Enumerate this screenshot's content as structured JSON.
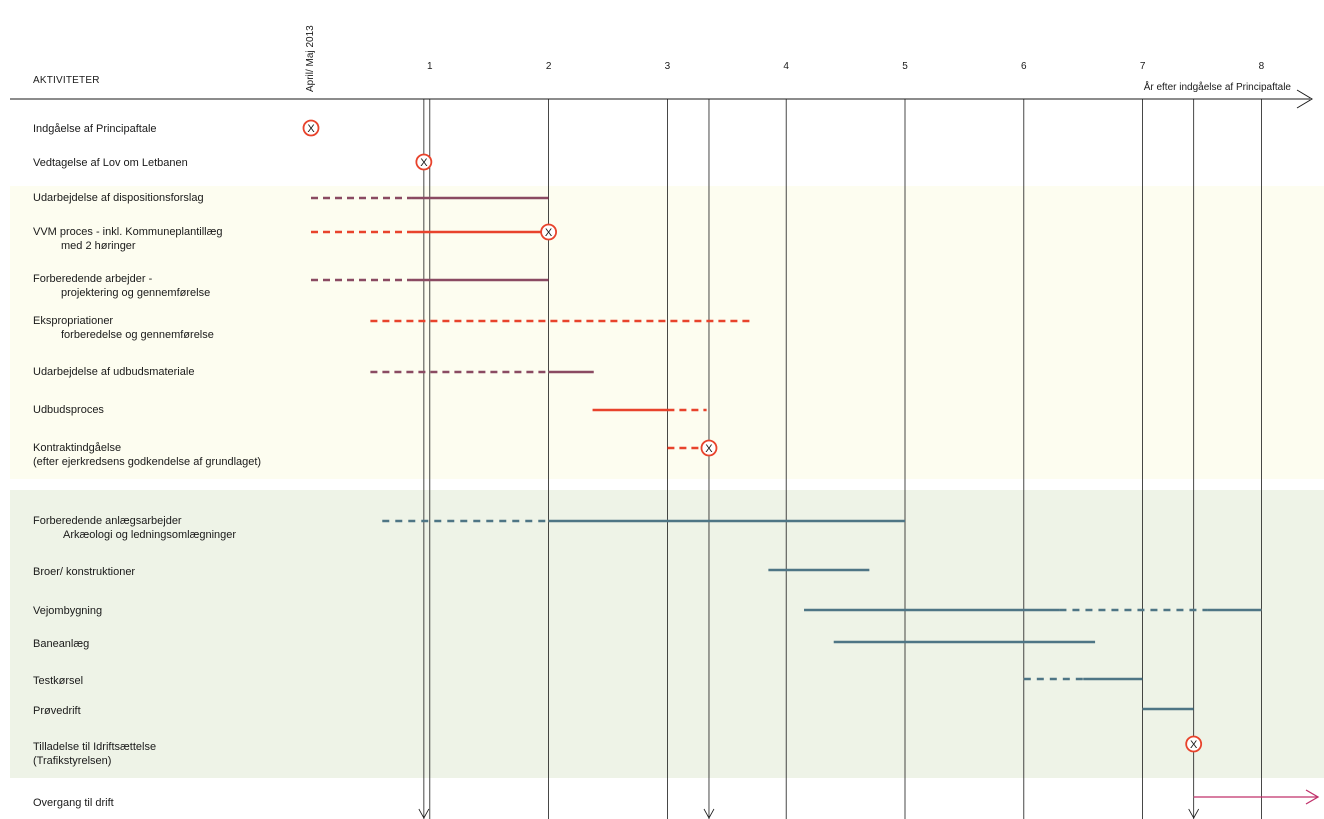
{
  "header": {
    "activities_label": "AKTIVITETER",
    "start_label": "April/ Maj 2013",
    "axis_label": "År efter indgåelse af Principaftale"
  },
  "axis": {
    "ticks": [
      "1",
      "2",
      "3",
      "4",
      "5",
      "6",
      "7",
      "8"
    ],
    "range_years": [
      0,
      8.2
    ]
  },
  "colors": {
    "purple": "#8a4a62",
    "red": "#e8432c",
    "teal": "#4e7585",
    "band_prep": "#fdfdf0",
    "band_build": "#eef3e7",
    "milestone": "#e8432c",
    "operation_arrow": "#c0306a"
  },
  "activities": [
    {
      "lines": [
        "Indgåelse af Principaftale"
      ]
    },
    {
      "lines": [
        "Vedtagelse af Lov om Letbanen"
      ]
    },
    {
      "lines": [
        "Udarbejdelse af dispositionsforslag"
      ]
    },
    {
      "lines": [
        "VVM proces - inkl. Kommuneplantillæg",
        "med 2 høringer"
      ]
    },
    {
      "lines": [
        "Forberedende arbejder -",
        "projektering og gennemførelse"
      ]
    },
    {
      "lines": [
        "Ekspropriationer",
        "forberedelse og gennemførelse"
      ]
    },
    {
      "lines": [
        "Udarbejdelse af udbudsmateriale"
      ]
    },
    {
      "lines": [
        "Udbudsproces"
      ]
    },
    {
      "lines": [
        "Kontraktindgåelse",
        "(efter ejerkredsens godkendelse af grundlaget)"
      ]
    },
    {
      "lines": [
        "Forberedende anlægsarbejder",
        "Arkæologi og ledningsomlægninger"
      ]
    },
    {
      "lines": [
        "Broer/ konstruktioner"
      ]
    },
    {
      "lines": [
        "Vejombygning"
      ]
    },
    {
      "lines": [
        "Baneanlæg"
      ]
    },
    {
      "lines": [
        "Testkørsel"
      ]
    },
    {
      "lines": [
        "Prøvedrift"
      ]
    },
    {
      "lines": [
        "Tilladelse til Idriftsættelse",
        "(Trafikstyrelsen)"
      ]
    },
    {
      "lines": [
        "Overgang til drift"
      ]
    }
  ],
  "milestone_glyph": "X",
  "schedule": [
    {
      "activity": 0,
      "milestone": 0
    },
    {
      "activity": 1,
      "milestone": 0.95
    },
    {
      "activity": 2,
      "color": "purple",
      "segments": [
        {
          "from": 0,
          "to": 0.85,
          "style": "dashed"
        },
        {
          "from": 0.85,
          "to": 2,
          "style": "solid"
        }
      ]
    },
    {
      "activity": 3,
      "color": "red",
      "segments": [
        {
          "from": 0,
          "to": 0.85,
          "style": "dashed"
        },
        {
          "from": 0.85,
          "to": 2,
          "style": "solid"
        }
      ],
      "milestone": 2
    },
    {
      "activity": 4,
      "color": "purple",
      "segments": [
        {
          "from": 0,
          "to": 0.85,
          "style": "dashed"
        },
        {
          "from": 0.85,
          "to": 2,
          "style": "solid"
        }
      ]
    },
    {
      "activity": 5,
      "color": "red",
      "segments": [
        {
          "from": 0.5,
          "to": 3.7,
          "style": "dashed"
        }
      ]
    },
    {
      "activity": 6,
      "color": "purple",
      "segments": [
        {
          "from": 0.5,
          "to": 2,
          "style": "dashed"
        },
        {
          "from": 2,
          "to": 2.38,
          "style": "solid"
        }
      ]
    },
    {
      "activity": 7,
      "color": "red",
      "segments": [
        {
          "from": 2.37,
          "to": 3,
          "style": "solid"
        },
        {
          "from": 3,
          "to": 3.33,
          "style": "dashed"
        }
      ]
    },
    {
      "activity": 8,
      "color": "red",
      "segments": [
        {
          "from": 3,
          "to": 3.3,
          "style": "dashed"
        }
      ],
      "milestone": 3.35
    },
    {
      "activity": 9,
      "color": "teal",
      "segments": [
        {
          "from": 0.6,
          "to": 2,
          "style": "dashed"
        },
        {
          "from": 2,
          "to": 5,
          "style": "solid"
        }
      ]
    },
    {
      "activity": 10,
      "color": "teal",
      "segments": [
        {
          "from": 3.85,
          "to": 4.7,
          "style": "solid"
        }
      ]
    },
    {
      "activity": 11,
      "color": "teal",
      "segments": [
        {
          "from": 4.15,
          "to": 6.3,
          "style": "solid"
        },
        {
          "from": 6.3,
          "to": 7.55,
          "style": "dashed"
        },
        {
          "from": 7.55,
          "to": 8,
          "style": "solid"
        }
      ]
    },
    {
      "activity": 12,
      "color": "teal",
      "segments": [
        {
          "from": 4.4,
          "to": 6.6,
          "style": "solid"
        }
      ]
    },
    {
      "activity": 13,
      "color": "teal",
      "segments": [
        {
          "from": 6,
          "to": 6.5,
          "style": "dashed"
        },
        {
          "from": 6.5,
          "to": 7,
          "style": "solid"
        }
      ]
    },
    {
      "activity": 14,
      "color": "teal",
      "segments": [
        {
          "from": 7,
          "to": 7.43,
          "style": "solid"
        }
      ]
    },
    {
      "activity": 15,
      "milestone": 7.43
    },
    {
      "activity": 16,
      "arrow_from": 7.43
    }
  ]
}
